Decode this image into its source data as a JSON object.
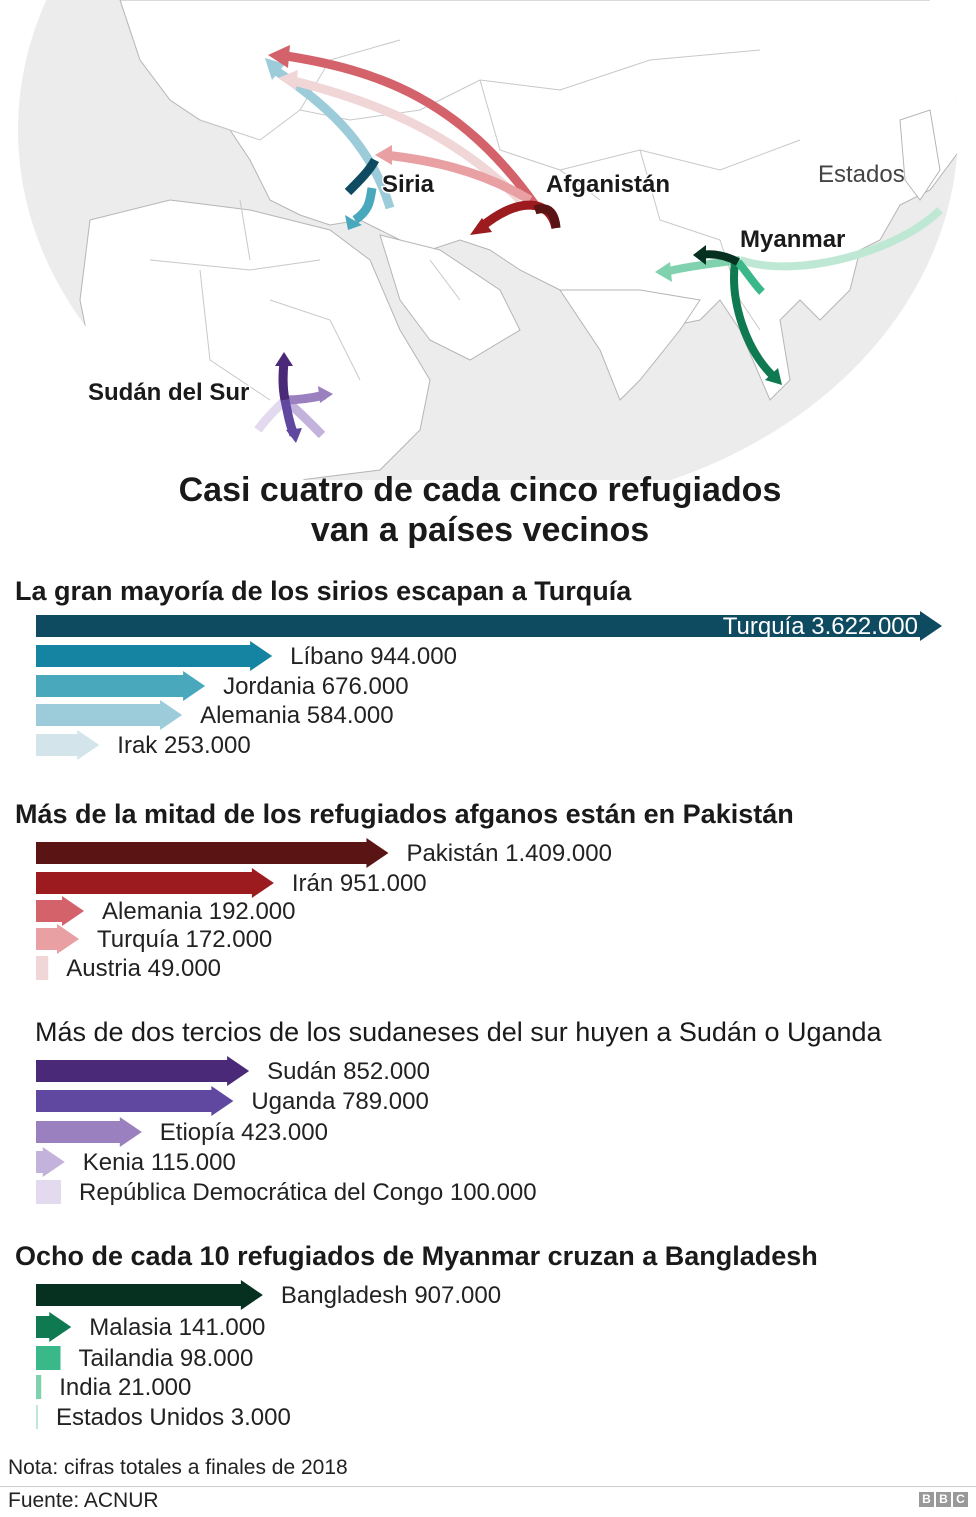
{
  "map": {
    "labels": {
      "syria": "Siria",
      "afghanistan": "Afganistán",
      "myanmar": "Myanmar",
      "south_sudan": "Sudán del Sur",
      "usa": "Estados"
    },
    "colors": {
      "ocean": "#ececec",
      "land": "#ffffff",
      "border": "#b5b5b5"
    }
  },
  "title_line1": "Casi cuatro de cada cinco refugiados",
  "title_line2": "van a países vecinos",
  "chart_data": [
    {
      "type": "bar",
      "orientation": "horizontal",
      "title": "La gran mayoría de los sirios escapan a Turquía",
      "xlim": [
        0,
        3622000
      ],
      "categories": [
        "Turquía",
        "Líbano",
        "Jordania",
        "Alemania",
        "Irak"
      ],
      "values": [
        3622000,
        944000,
        676000,
        584000,
        253000
      ],
      "labels": [
        "Turquía 3.622.000",
        "Líbano 944.000",
        "Jordania 676.000",
        "Alemania 584.000",
        "Irak 253.000"
      ],
      "colors": [
        "#0e4b60",
        "#1583a2",
        "#4aa8bd",
        "#9ccbd9",
        "#d3e5eb"
      ]
    },
    {
      "type": "bar",
      "orientation": "horizontal",
      "title": "Más de la mitad de los refugiados afganos están en Pakistán",
      "xlim": [
        0,
        3622000
      ],
      "categories": [
        "Pakistán",
        "Irán",
        "Alemania",
        "Turquía",
        "Austria"
      ],
      "values": [
        1409000,
        951000,
        192000,
        172000,
        49000
      ],
      "labels": [
        "Pakistán 1.409.000",
        "Irán 951.000",
        "Alemania 192.000",
        "Turquía 172.000",
        "Austria 49.000"
      ],
      "colors": [
        "#5a1414",
        "#9b1b1f",
        "#d4626a",
        "#e8a0a3",
        "#f1d6d7"
      ]
    },
    {
      "type": "bar",
      "orientation": "horizontal",
      "title": "Más de dos tercios de los sudaneses del sur huyen a Sudán o Uganda",
      "xlim": [
        0,
        3622000
      ],
      "categories": [
        "Sudán",
        "Uganda",
        "Etiopía",
        "Kenia",
        "República Democrática del Congo"
      ],
      "values": [
        852000,
        789000,
        423000,
        115000,
        100000
      ],
      "labels": [
        "Sudán 852.000",
        "Uganda 789.000",
        "Etiopía 423.000",
        "Kenia 115.000",
        "República Democrática del Congo 100.000"
      ],
      "colors": [
        "#4a2a78",
        "#6048a0",
        "#9b80c0",
        "#c3b3dc",
        "#e3daf0"
      ]
    },
    {
      "type": "bar",
      "orientation": "horizontal",
      "title": "Ocho de cada 10 refugiados de Myanmar cruzan a Bangladesh",
      "xlim": [
        0,
        3622000
      ],
      "categories": [
        "Bangladesh",
        "Malasia",
        "Tailandia",
        "India",
        "Estados Unidos"
      ],
      "values": [
        907000,
        141000,
        98000,
        21000,
        3000
      ],
      "labels": [
        "Bangladesh 907.000",
        "Malasia 141.000",
        "Tailandia 98.000",
        "India 21.000",
        "Estados Unidos 3.000"
      ],
      "colors": [
        "#06301f",
        "#0f7a52",
        "#3bb889",
        "#7fd2ad",
        "#bfe8d4"
      ]
    }
  ],
  "note": "Nota: cifras totales a finales de 2018",
  "source": "Fuente: ACNUR",
  "logo": [
    "B",
    "B",
    "C"
  ]
}
